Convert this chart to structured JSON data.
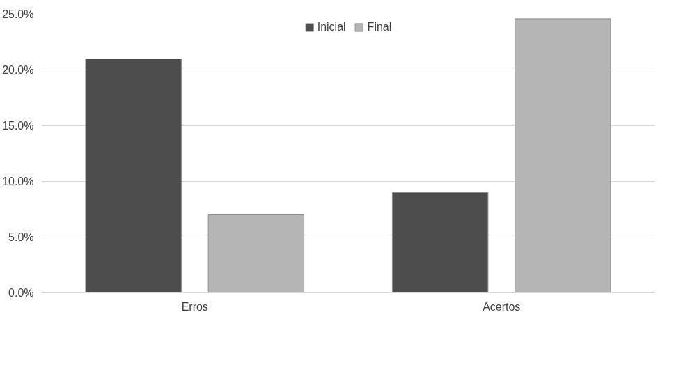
{
  "chart_data": {
    "type": "bar",
    "categories": [
      "Erros",
      "Acertos"
    ],
    "series": [
      {
        "name": "Inicial",
        "color": "#4d4d4d",
        "values": [
          21.0,
          9.0
        ]
      },
      {
        "name": "Final",
        "color": "#b5b5b5",
        "values": [
          7.0,
          24.6
        ]
      }
    ],
    "ylim": [
      0,
      25
    ],
    "yticks": [
      {
        "value": 0,
        "label": "0.0%"
      },
      {
        "value": 5,
        "label": "5.0%"
      },
      {
        "value": 10,
        "label": "10.0%"
      },
      {
        "value": 15,
        "label": "15.0%"
      },
      {
        "value": 20,
        "label": "20.0%"
      },
      {
        "value": 25,
        "label": "25.0%"
      }
    ],
    "grid": "y",
    "legend": "top"
  }
}
